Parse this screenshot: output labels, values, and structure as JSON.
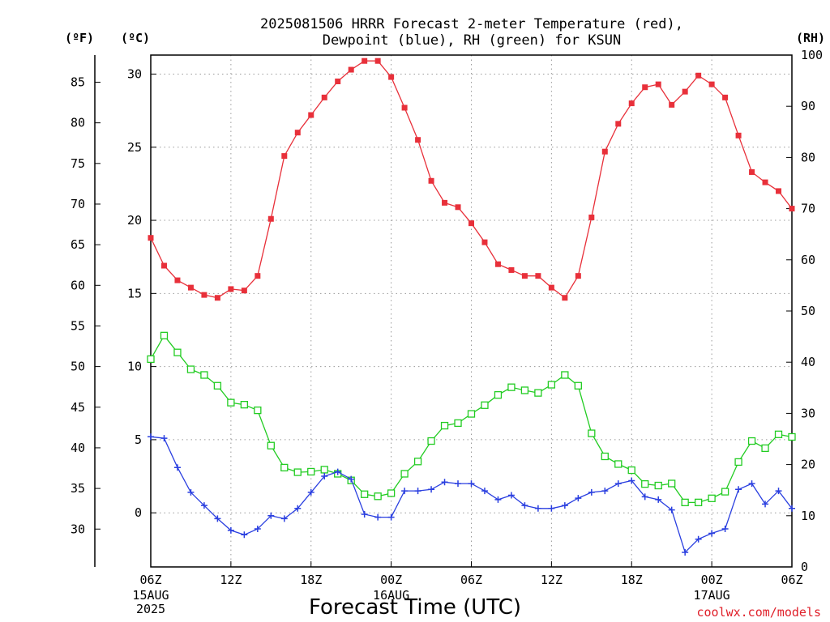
{
  "chart_data": {
    "type": "line",
    "title": "2025081506 HRRR Forecast 2-meter Temperature (red),",
    "subtitle": "Dewpoint (blue), RH (green) for KSUN",
    "xlabel": "Forecast Time (UTC)",
    "credit": "coolwx.com/models",
    "units": {
      "fahrenheit": "(ºF)",
      "celsius": "(ºC)",
      "rh": "(RH)"
    },
    "x_range_hours": [
      0,
      48
    ],
    "x_ticks": [
      {
        "hour": 0,
        "label": "06Z",
        "sub": "15AUG",
        "sub2": "2025"
      },
      {
        "hour": 6,
        "label": "12Z",
        "sub": "",
        "sub2": ""
      },
      {
        "hour": 12,
        "label": "18Z",
        "sub": "",
        "sub2": ""
      },
      {
        "hour": 18,
        "label": "00Z",
        "sub": "16AUG",
        "sub2": ""
      },
      {
        "hour": 24,
        "label": "06Z",
        "sub": "",
        "sub2": ""
      },
      {
        "hour": 30,
        "label": "12Z",
        "sub": "",
        "sub2": ""
      },
      {
        "hour": 36,
        "label": "18Z",
        "sub": "",
        "sub2": ""
      },
      {
        "hour": 42,
        "label": "00Z",
        "sub": "17AUG",
        "sub2": ""
      },
      {
        "hour": 48,
        "label": "06Z",
        "sub": "",
        "sub2": ""
      }
    ],
    "celsius_axis": {
      "range": [
        -3.7,
        31.3
      ],
      "ticks": [
        "0",
        "5",
        "10",
        "15",
        "20",
        "25",
        "30"
      ]
    },
    "fahrenheit_axis": {
      "ticks": [
        "30",
        "35",
        "40",
        "45",
        "50",
        "55",
        "60",
        "65",
        "70",
        "75",
        "80",
        "85"
      ]
    },
    "rh_axis": {
      "range": [
        0,
        100
      ],
      "ticks": [
        "0",
        "10",
        "20",
        "30",
        "40",
        "50",
        "60",
        "70",
        "80",
        "90",
        "100"
      ]
    },
    "grid": true,
    "series": [
      {
        "key": "temperature",
        "color": "#e8303a",
        "marker": "filled-square",
        "axis": "celsius",
        "values": [
          18.8,
          16.9,
          15.9,
          15.4,
          14.9,
          14.7,
          15.3,
          15.2,
          16.2,
          20.1,
          24.4,
          26.0,
          27.2,
          28.4,
          29.5,
          30.3,
          30.9,
          30.9,
          29.8,
          27.7,
          25.5,
          22.7,
          21.2,
          20.9,
          19.8,
          18.5,
          17.0,
          16.6,
          16.2,
          16.2,
          15.4,
          14.7,
          16.2,
          20.2,
          24.7,
          26.6,
          28.0,
          29.1,
          29.3,
          27.9,
          28.8,
          29.9,
          29.3,
          28.4,
          25.8,
          23.3,
          22.6,
          22.0,
          20.8
        ]
      },
      {
        "key": "dewpoint",
        "color": "#2a3fe0",
        "marker": "plus",
        "axis": "celsius",
        "values": [
          5.2,
          5.1,
          3.1,
          1.4,
          0.5,
          -0.4,
          -1.2,
          -1.5,
          -1.1,
          -0.2,
          -0.4,
          0.3,
          1.4,
          2.5,
          2.8,
          2.3,
          -0.1,
          -0.3,
          -0.3,
          1.5,
          1.5,
          1.6,
          2.1,
          2.0,
          2.0,
          1.5,
          0.9,
          1.2,
          0.5,
          0.3,
          0.3,
          0.5,
          1.0,
          1.4,
          1.5,
          2.0,
          2.2,
          1.1,
          0.9,
          0.2,
          -2.7,
          -1.8,
          -1.4,
          -1.1,
          1.6,
          2.0,
          0.6,
          1.5,
          0.3
        ]
      },
      {
        "key": "rh",
        "color": "#22cc22",
        "marker": "open-square",
        "axis": "rh",
        "values": [
          40.6,
          45.2,
          41.9,
          38.6,
          37.5,
          35.4,
          32.1,
          31.7,
          30.6,
          23.7,
          19.4,
          18.5,
          18.6,
          19.0,
          18.2,
          16.9,
          14.2,
          13.8,
          14.4,
          18.2,
          20.6,
          24.6,
          27.6,
          28.1,
          29.9,
          31.6,
          33.6,
          35.1,
          34.5,
          34.0,
          35.6,
          37.5,
          35.4,
          26.1,
          21.6,
          20.1,
          18.9,
          16.2,
          15.9,
          16.3,
          12.6,
          12.6,
          13.4,
          14.7,
          20.5,
          24.6,
          23.2,
          25.9,
          25.4
        ]
      }
    ]
  }
}
